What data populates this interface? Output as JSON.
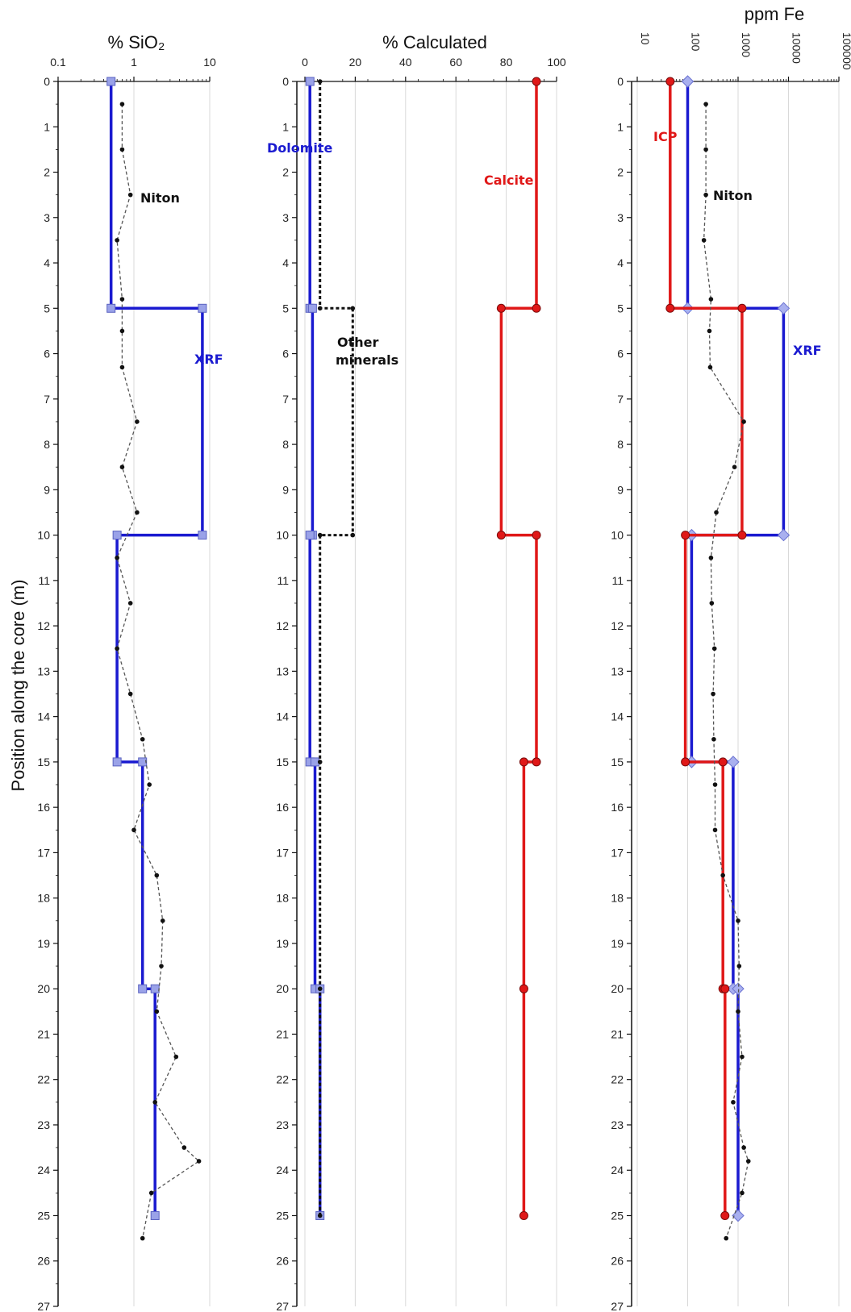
{
  "figure": {
    "ylabel": "Position along the core (m)"
  },
  "chart_data": [
    {
      "type": "line",
      "title": "% SiO₂",
      "ylabel": "Position along the core (m)",
      "xscale": "log",
      "xlim": [
        0.1,
        10
      ],
      "ylim": [
        27,
        0
      ],
      "xticks": [
        "0.1",
        "1",
        "10"
      ],
      "yticks": [
        "0",
        "1",
        "2",
        "3",
        "4",
        "5",
        "6",
        "7",
        "8",
        "9",
        "10",
        "11",
        "12",
        "13",
        "14",
        "15",
        "16",
        "17",
        "18",
        "19",
        "20",
        "21",
        "22",
        "23",
        "24",
        "25",
        "26",
        "27"
      ],
      "series": [
        {
          "name": "XRF",
          "color": "#1a1ad0",
          "style": "step",
          "marker": "square",
          "points": [
            [
              0.5,
              0
            ],
            [
              0.5,
              5
            ],
            [
              8,
              5
            ],
            [
              8,
              10
            ],
            [
              0.6,
              10
            ],
            [
              0.6,
              15
            ],
            [
              1.3,
              15
            ],
            [
              1.3,
              20
            ],
            [
              1.9,
              20
            ],
            [
              1.9,
              25
            ]
          ]
        },
        {
          "name": "Niton",
          "color": "#222222",
          "style": "dotted",
          "marker": "dot",
          "points": [
            [
              0.7,
              0.5
            ],
            [
              0.7,
              1.5
            ],
            [
              0.9,
              2.5
            ],
            [
              0.6,
              3.5
            ],
            [
              0.7,
              4.8
            ],
            [
              0.7,
              5.5
            ],
            [
              0.7,
              6.3
            ],
            [
              1.1,
              7.5
            ],
            [
              0.7,
              8.5
            ],
            [
              1.1,
              9.5
            ],
            [
              0.6,
              10.5
            ],
            [
              0.9,
              11.5
            ],
            [
              0.6,
              12.5
            ],
            [
              0.9,
              13.5
            ],
            [
              1.3,
              14.5
            ],
            [
              1.6,
              15.5
            ],
            [
              1.0,
              16.5
            ],
            [
              2.0,
              17.5
            ],
            [
              2.4,
              18.5
            ],
            [
              2.3,
              19.5
            ],
            [
              2.0,
              20.5
            ],
            [
              3.6,
              21.5
            ],
            [
              1.9,
              22.5
            ],
            [
              4.6,
              23.5
            ],
            [
              7.2,
              23.8
            ],
            [
              1.7,
              24.5
            ],
            [
              1.3,
              25.5
            ]
          ]
        }
      ],
      "annotations": [
        {
          "text": "Niton",
          "color": "#111111"
        },
        {
          "text": "XRF",
          "color": "#1a1ad0"
        }
      ]
    },
    {
      "type": "line",
      "title": "% Calculated",
      "xlim": [
        0,
        100
      ],
      "ylim": [
        27,
        0
      ],
      "xticks": [
        "0",
        "20",
        "40",
        "60",
        "80",
        "100"
      ],
      "yticks": [
        "0",
        "1",
        "2",
        "3",
        "4",
        "5",
        "6",
        "7",
        "8",
        "9",
        "10",
        "11",
        "12",
        "13",
        "14",
        "15",
        "16",
        "17",
        "18",
        "19",
        "20",
        "21",
        "22",
        "23",
        "24",
        "25",
        "26",
        "27"
      ],
      "series": [
        {
          "name": "Dolomite",
          "color": "#1a1ad0",
          "style": "step",
          "marker": "square",
          "points": [
            [
              2,
              0
            ],
            [
              2,
              5
            ],
            [
              3,
              5
            ],
            [
              3,
              10
            ],
            [
              2,
              10
            ],
            [
              2,
              15
            ],
            [
              4,
              15
            ],
            [
              4,
              20
            ],
            [
              6,
              20
            ],
            [
              6,
              25
            ]
          ]
        },
        {
          "name": "Calcite",
          "color": "#e01818",
          "style": "step",
          "marker": "circle",
          "points": [
            [
              92,
              0
            ],
            [
              92,
              5
            ],
            [
              78,
              5
            ],
            [
              78,
              10
            ],
            [
              92,
              10
            ],
            [
              92,
              15
            ],
            [
              87,
              15
            ],
            [
              87,
              20
            ],
            [
              87,
              25
            ]
          ]
        },
        {
          "name": "Other minerals",
          "color": "#111111",
          "style": "dashed",
          "marker": "dot",
          "points": [
            [
              6,
              0
            ],
            [
              6,
              5
            ],
            [
              19,
              5
            ],
            [
              19,
              10
            ],
            [
              6,
              10
            ],
            [
              6,
              15
            ],
            [
              6,
              20
            ],
            [
              6,
              25
            ]
          ]
        }
      ],
      "annotations": [
        {
          "text": "Dolomite",
          "color": "#1a1ad0"
        },
        {
          "text": "Calcite",
          "color": "#e01818"
        },
        {
          "text": "Other",
          "color": "#111111"
        },
        {
          "text": "minerals",
          "color": "#111111"
        }
      ]
    },
    {
      "type": "line",
      "title": "ppm Fe",
      "xscale": "log",
      "xlim": [
        10,
        100000
      ],
      "ylim": [
        27,
        0
      ],
      "xticks": [
        "10",
        "100",
        "1000",
        "10000",
        "100000"
      ],
      "yticks": [
        "0",
        "1",
        "2",
        "3",
        "4",
        "5",
        "6",
        "7",
        "8",
        "9",
        "10",
        "11",
        "12",
        "13",
        "14",
        "15",
        "16",
        "17",
        "18",
        "19",
        "20",
        "21",
        "22",
        "23",
        "24",
        "25",
        "26",
        "27"
      ],
      "series": [
        {
          "name": "XRF",
          "color": "#1a1ad0",
          "style": "step",
          "marker": "diamond",
          "points": [
            [
              100,
              0
            ],
            [
              100,
              5
            ],
            [
              8000,
              5
            ],
            [
              8000,
              10
            ],
            [
              120,
              10
            ],
            [
              120,
              15
            ],
            [
              800,
              15
            ],
            [
              800,
              20
            ],
            [
              1000,
              20
            ],
            [
              1000,
              25
            ]
          ]
        },
        {
          "name": "ICP",
          "color": "#e01818",
          "style": "step",
          "marker": "circle",
          "points": [
            [
              45,
              0
            ],
            [
              45,
              5
            ],
            [
              1200,
              5
            ],
            [
              1200,
              10
            ],
            [
              90,
              10
            ],
            [
              90,
              15
            ],
            [
              500,
              15
            ],
            [
              500,
              20
            ],
            [
              550,
              20
            ],
            [
              550,
              25
            ]
          ]
        },
        {
          "name": "Niton",
          "color": "#111111",
          "style": "dotted",
          "marker": "dot",
          "points": [
            [
              230,
              0.5
            ],
            [
              230,
              1.5
            ],
            [
              230,
              2.5
            ],
            [
              210,
              3.5
            ],
            [
              290,
              4.8
            ],
            [
              270,
              5.5
            ],
            [
              280,
              6.3
            ],
            [
              1300,
              7.5
            ],
            [
              850,
              8.5
            ],
            [
              370,
              9.5
            ],
            [
              290,
              10.5
            ],
            [
              300,
              11.5
            ],
            [
              340,
              12.5
            ],
            [
              320,
              13.5
            ],
            [
              330,
              14.5
            ],
            [
              350,
              15.5
            ],
            [
              350,
              16.5
            ],
            [
              500,
              17.5
            ],
            [
              1000,
              18.5
            ],
            [
              1050,
              19.5
            ],
            [
              1000,
              20.5
            ],
            [
              1200,
              21.5
            ],
            [
              800,
              22.5
            ],
            [
              1300,
              23.5
            ],
            [
              1600,
              23.8
            ],
            [
              1200,
              24.5
            ],
            [
              580,
              25.5
            ]
          ]
        }
      ],
      "annotations": [
        {
          "text": "ICP",
          "color": "#e01818"
        },
        {
          "text": "Niton",
          "color": "#111111"
        },
        {
          "text": "XRF",
          "color": "#1a1ad0"
        }
      ]
    }
  ]
}
